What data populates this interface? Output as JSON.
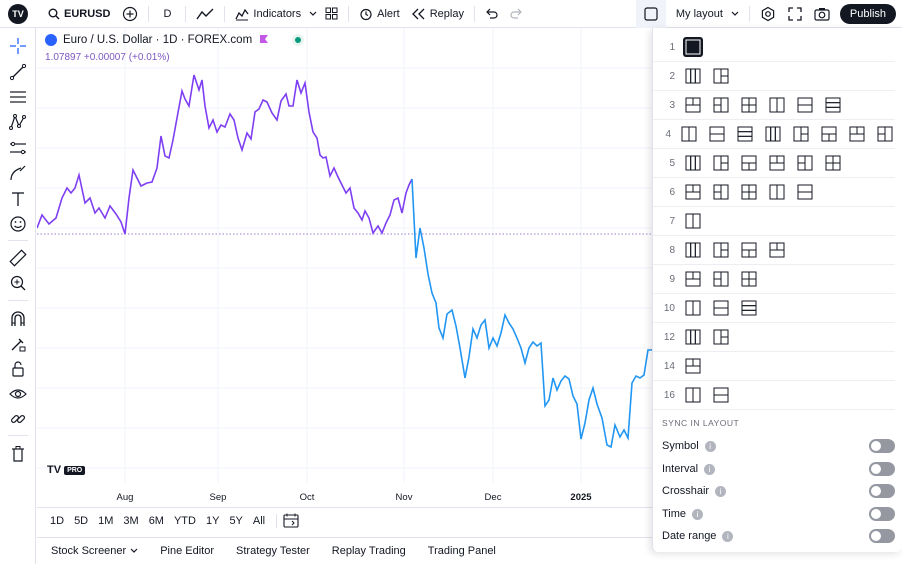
{
  "toolbar": {
    "symbol": "EURUSD",
    "interval": "D",
    "indicators": "Indicators",
    "alert": "Alert",
    "replay": "Replay",
    "layout_name": "My layout",
    "publish": "Publish"
  },
  "legend": {
    "title": "Euro / U.S. Dollar · 1D · FOREX.com",
    "price": "1.07897 +0.00007 (+0.01%)"
  },
  "chart_data": {
    "type": "line",
    "x_labels": [
      "Aug",
      "Sep",
      "Oct",
      "Nov",
      "Dec",
      "2025"
    ],
    "ylabel": "",
    "title": "",
    "up_color": "#7e3ff2",
    "down_color": "#2196f3"
  },
  "branding": {
    "logo_text": "TV",
    "pro": "PRO"
  },
  "timeframes": [
    "1D",
    "5D",
    "1M",
    "3M",
    "6M",
    "YTD",
    "1Y",
    "5Y",
    "All"
  ],
  "bottom_tabs": [
    "Stock Screener",
    "Pine Editor",
    "Strategy Tester",
    "Replay Trading",
    "Trading Panel"
  ],
  "layout_menu": {
    "rows": [
      {
        "num": "1",
        "count": 1
      },
      {
        "num": "2",
        "count": 2
      },
      {
        "num": "3",
        "count": 6
      },
      {
        "num": "4",
        "count": 8
      },
      {
        "num": "5",
        "count": 6
      },
      {
        "num": "6",
        "count": 5
      },
      {
        "num": "7",
        "count": 1
      },
      {
        "num": "8",
        "count": 4
      },
      {
        "num": "9",
        "count": 3
      },
      {
        "num": "10",
        "count": 3
      },
      {
        "num": "12",
        "count": 2
      },
      {
        "num": "14",
        "count": 1
      },
      {
        "num": "16",
        "count": 2
      }
    ],
    "sync_heading": "SYNC IN LAYOUT",
    "sync_items": [
      "Symbol",
      "Interval",
      "Crosshair",
      "Time",
      "Date range"
    ]
  }
}
